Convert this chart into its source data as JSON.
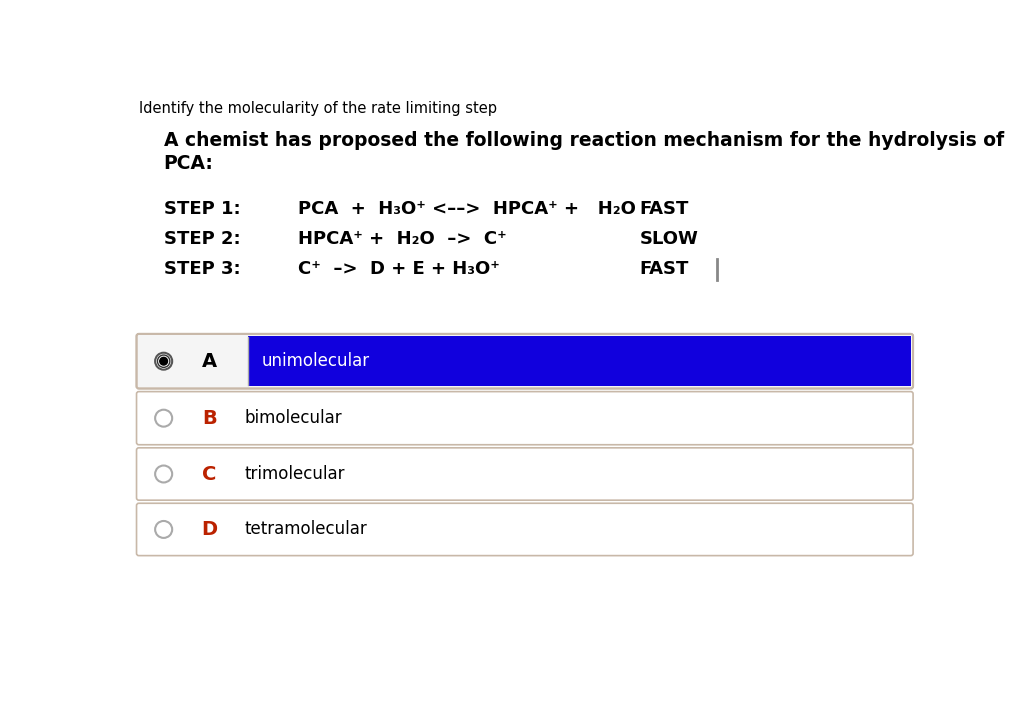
{
  "title": "Identify the molecularity of the rate limiting step",
  "subtitle_line1": "A chemist has proposed the following reaction mechanism for the hydrolysis of",
  "subtitle_line2": "PCA:",
  "step1_label": "STEP 1:",
  "step1_eq": "PCA  +  H₃O⁺ <––>  HPCA⁺ +   H₂O",
  "step1_rate": "FAST",
  "step2_label": "STEP 2:",
  "step2_eq": "HPCA⁺ +  H₂O  –>  C⁺",
  "step2_rate": "SLOW",
  "step3_label": "STEP 3:",
  "step3_eq": "C⁺  –>  D + E + H₃O⁺",
  "step3_rate": "FAST",
  "options": [
    {
      "letter": "A",
      "text": "unimolecular",
      "selected": true
    },
    {
      "letter": "B",
      "text": "bimolecular",
      "selected": false
    },
    {
      "letter": "C",
      "text": "trimolecular",
      "selected": false
    },
    {
      "letter": "D",
      "text": "tetramolecular",
      "selected": false
    }
  ],
  "selected_bg": "#1100dd",
  "selected_text_color": "#ffffff",
  "unselected_bg": "#ffffff",
  "unselected_text_color": "#000000",
  "letter_colors": {
    "A": "#000000",
    "B": "#bb2200",
    "C": "#bb2200",
    "D": "#bb2200"
  },
  "bg_color": "#ffffff",
  "border_color": "#c8b8a8",
  "title_fontsize": 10.5,
  "subtitle_fontsize": 13.5,
  "step_fontsize": 13,
  "option_fontsize": 12
}
